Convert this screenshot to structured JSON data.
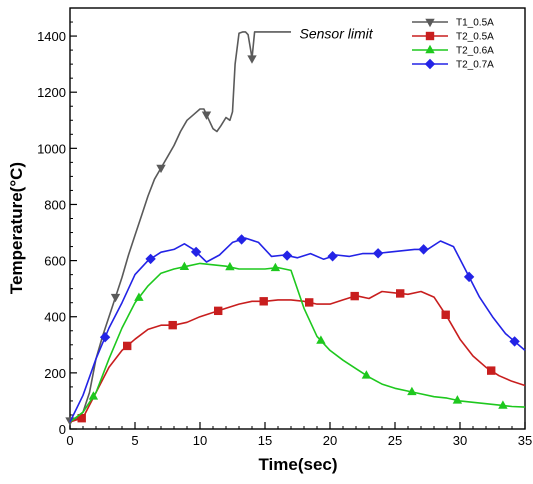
{
  "chart_data": {
    "type": "line",
    "xlabel": "Time(sec)",
    "ylabel": "Temperature(°C)",
    "xlim": [
      0,
      35
    ],
    "ylim": [
      0,
      1500
    ],
    "xticks": [
      0,
      5,
      10,
      15,
      20,
      25,
      30,
      35
    ],
    "yticks": [
      0,
      200,
      400,
      600,
      800,
      1000,
      1200,
      1400
    ],
    "grid": false,
    "legend_position": "top-right",
    "annotation": {
      "text": "Sensor limit",
      "x": 17.5,
      "y": 1410
    },
    "series": [
      {
        "name": "T1_0.5A",
        "color": "#5a5a5a",
        "marker": "triangle-down",
        "markers_at": [
          0,
          2,
          4,
          6,
          8,
          10,
          12,
          14,
          16
        ],
        "x": [
          0,
          0.5,
          1,
          1.5,
          2,
          2.5,
          3,
          3.5,
          4,
          4.5,
          5,
          5.5,
          6,
          6.5,
          7,
          7.5,
          8,
          8.5,
          9,
          9.5,
          10,
          10.3,
          10.7,
          11,
          11.3,
          11.6,
          12,
          12.3,
          12.5,
          12.7,
          13,
          13.3,
          13.5,
          13.7,
          13.9,
          14,
          14.2,
          15,
          16,
          17
        ],
        "y": [
          30,
          35,
          60,
          130,
          250,
          330,
          400,
          470,
          540,
          620,
          690,
          760,
          830,
          890,
          930,
          970,
          1010,
          1060,
          1100,
          1120,
          1140,
          1140,
          1100,
          1070,
          1060,
          1080,
          1110,
          1100,
          1130,
          1300,
          1410,
          1415,
          1415,
          1405,
          1350,
          1320,
          1415,
          1415,
          1415,
          1415
        ]
      },
      {
        "name": "T2_0.5A",
        "color": "#c81e1e",
        "marker": "square",
        "markers_at": [
          0,
          2,
          4,
          6,
          8,
          10,
          12,
          14,
          16
        ],
        "x": [
          0,
          1,
          2,
          3,
          4,
          5,
          6,
          7,
          8,
          9,
          10,
          11,
          12,
          13,
          14,
          15,
          16,
          17,
          18,
          19,
          20,
          21,
          22,
          23,
          24,
          25,
          26,
          27,
          28,
          29,
          30,
          31,
          32,
          33,
          34,
          35
        ],
        "y": [
          25,
          40,
          130,
          220,
          280,
          320,
          355,
          370,
          370,
          380,
          400,
          415,
          430,
          445,
          455,
          455,
          460,
          460,
          455,
          445,
          445,
          460,
          475,
          465,
          490,
          485,
          480,
          490,
          470,
          400,
          320,
          260,
          220,
          190,
          170,
          155
        ]
      },
      {
        "name": "T2_0.6A",
        "color": "#1ec81e",
        "marker": "triangle-up",
        "markers_at": [
          0,
          2,
          4,
          6,
          8,
          10,
          12,
          14,
          16
        ],
        "x": [
          0,
          1,
          2,
          3,
          4,
          5,
          6,
          7,
          8,
          9,
          10,
          11,
          12,
          13,
          14,
          15,
          16,
          17,
          18,
          19,
          20,
          21,
          22,
          23,
          24,
          25,
          26,
          27,
          28,
          29,
          30,
          31,
          32,
          33,
          34,
          35
        ],
        "y": [
          25,
          60,
          130,
          250,
          360,
          450,
          510,
          555,
          570,
          580,
          590,
          585,
          580,
          570,
          570,
          570,
          575,
          565,
          430,
          330,
          280,
          245,
          215,
          185,
          160,
          145,
          135,
          125,
          115,
          110,
          100,
          95,
          90,
          85,
          80,
          78
        ]
      },
      {
        "name": "T2_0.7A",
        "color": "#2323e6",
        "marker": "diamond",
        "markers_at": [
          0,
          2,
          4,
          6,
          8,
          10,
          12,
          14,
          16
        ],
        "x": [
          0,
          1,
          2,
          3,
          4,
          5,
          6,
          7,
          8,
          8.8,
          9.5,
          10.5,
          11.5,
          12.5,
          13.5,
          14.5,
          15.5,
          16.5,
          17.5,
          18.5,
          19.5,
          20.5,
          21.5,
          22.5,
          23.5,
          24.5,
          25.5,
          26.5,
          27.5,
          28.5,
          29.5,
          30.5,
          31.5,
          32.5,
          33.5,
          35
        ],
        "y": [
          25,
          120,
          250,
          360,
          450,
          550,
          600,
          630,
          640,
          660,
          640,
          595,
          620,
          665,
          680,
          665,
          615,
          620,
          610,
          625,
          605,
          620,
          615,
          625,
          625,
          630,
          635,
          640,
          640,
          670,
          650,
          560,
          470,
          400,
          340,
          280
        ]
      }
    ]
  }
}
